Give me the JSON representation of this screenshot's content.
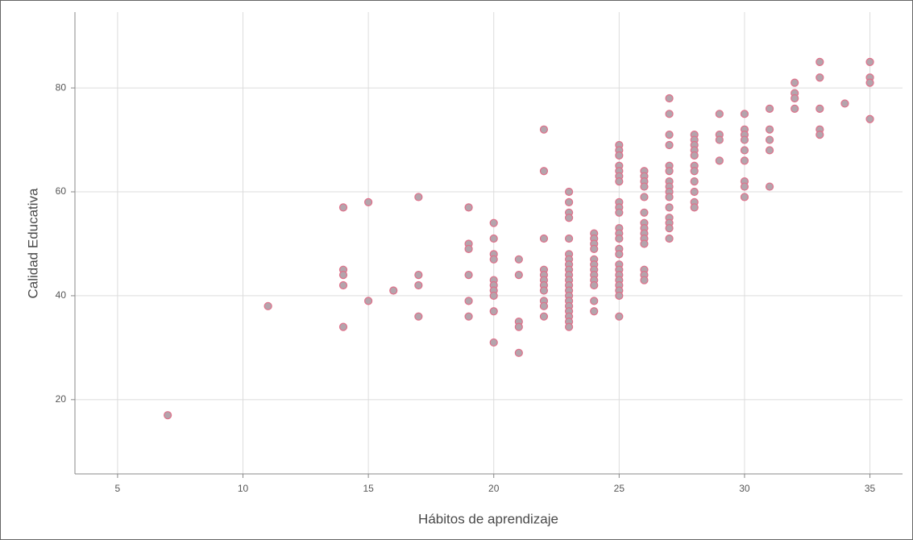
{
  "chart_data": {
    "type": "scatter",
    "x_label": "Hábitos de aprendizaje",
    "y_label": "Calidad Educativa",
    "x": [
      7,
      11,
      14,
      14,
      14,
      14,
      14,
      15,
      15,
      16,
      17,
      17,
      17,
      17,
      19,
      19,
      19,
      19,
      19,
      19,
      20,
      20,
      20,
      20,
      20,
      20,
      20,
      20,
      20,
      20,
      21,
      21,
      21,
      21,
      21,
      22,
      22,
      22,
      22,
      22,
      22,
      22,
      22,
      22,
      22,
      22,
      23,
      23,
      23,
      23,
      23,
      23,
      23,
      23,
      23,
      23,
      23,
      23,
      23,
      23,
      23,
      23,
      23,
      23,
      23,
      23,
      24,
      24,
      24,
      24,
      24,
      24,
      24,
      24,
      24,
      24,
      24,
      24,
      25,
      25,
      25,
      25,
      25,
      25,
      25,
      25,
      25,
      25,
      25,
      25,
      25,
      25,
      25,
      25,
      25,
      25,
      25,
      25,
      25,
      25,
      25,
      26,
      26,
      26,
      26,
      26,
      26,
      26,
      26,
      26,
      26,
      26,
      26,
      26,
      26,
      27,
      27,
      27,
      27,
      27,
      27,
      27,
      27,
      27,
      27,
      27,
      27,
      27,
      27,
      27,
      28,
      28,
      28,
      28,
      28,
      28,
      28,
      28,
      28,
      28,
      28,
      29,
      29,
      29,
      29,
      30,
      30,
      30,
      30,
      30,
      30,
      30,
      30,
      30,
      31,
      31,
      31,
      31,
      31,
      32,
      32,
      32,
      32,
      33,
      33,
      33,
      33,
      33,
      34,
      35,
      35,
      35,
      35
    ],
    "values": [
      17,
      38,
      57,
      45,
      44,
      42,
      34,
      58,
      39,
      41,
      59,
      44,
      42,
      36,
      57,
      50,
      49,
      44,
      39,
      36,
      54,
      51,
      48,
      47,
      43,
      42,
      41,
      40,
      37,
      31,
      47,
      44,
      35,
      34,
      29,
      72,
      64,
      51,
      45,
      44,
      43,
      42,
      41,
      39,
      38,
      36,
      60,
      58,
      56,
      55,
      51,
      48,
      47,
      46,
      45,
      44,
      43,
      42,
      41,
      40,
      39,
      38,
      37,
      36,
      35,
      34,
      52,
      51,
      50,
      49,
      47,
      46,
      45,
      44,
      43,
      42,
      39,
      37,
      69,
      68,
      67,
      65,
      64,
      63,
      62,
      58,
      57,
      56,
      53,
      52,
      51,
      49,
      48,
      46,
      45,
      44,
      43,
      42,
      41,
      40,
      36,
      64,
      63,
      62,
      61,
      59,
      56,
      54,
      53,
      52,
      51,
      50,
      45,
      44,
      43,
      78,
      75,
      71,
      69,
      65,
      64,
      62,
      61,
      60,
      59,
      57,
      55,
      54,
      53,
      51,
      71,
      70,
      69,
      68,
      67,
      65,
      64,
      62,
      60,
      58,
      57,
      75,
      71,
      70,
      66,
      75,
      72,
      71,
      70,
      68,
      66,
      62,
      61,
      59,
      76,
      72,
      70,
      68,
      61,
      81,
      79,
      78,
      76,
      85,
      82,
      76,
      72,
      71,
      77,
      85,
      82,
      81,
      74
    ],
    "color": "#b4a4ac",
    "edge_color": "#e0708a",
    "xlim": [
      3.3,
      36.3
    ],
    "ylim": [
      5.7,
      94.6
    ],
    "xticks": [
      5,
      10,
      15,
      20,
      25,
      30,
      35
    ],
    "yticks": [
      20,
      40,
      60,
      80
    ],
    "grid": true
  }
}
